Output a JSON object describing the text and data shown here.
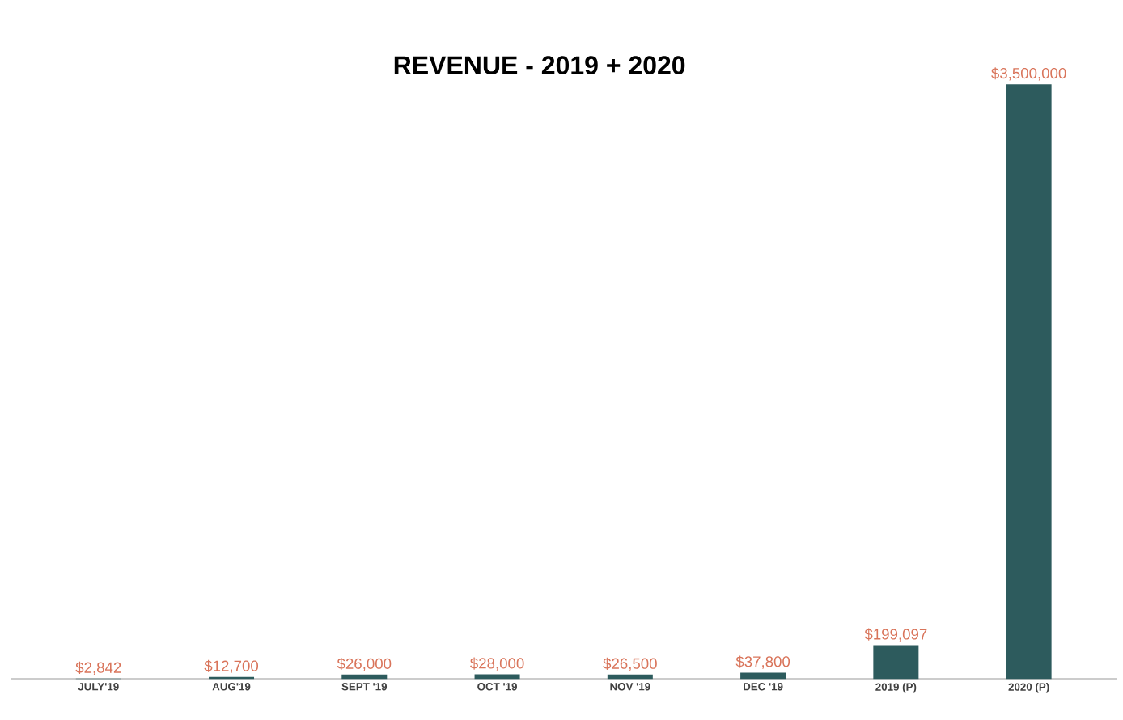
{
  "chart_data": {
    "type": "bar",
    "title": "**REVENUE - 2019 + 2020**",
    "categories": [
      "JULY'19",
      "AUG'19",
      "SEPT '19",
      "OCT '19",
      "NOV '19",
      "DEC '19",
      "2019 (P)",
      "2020 (P)"
    ],
    "values": [
      2842,
      12700,
      26000,
      28000,
      26500,
      37800,
      199097,
      3500000
    ],
    "value_labels": [
      "$2,842",
      "$12,700",
      "$26,000",
      "$28,000",
      "$26,500",
      "$37,800",
      "$199,097",
      "$3,500,000"
    ],
    "color": "#2d5b5d"
  }
}
